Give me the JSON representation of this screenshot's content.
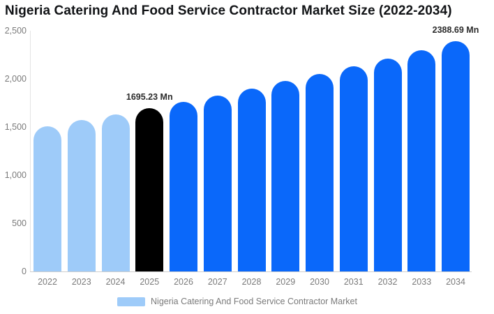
{
  "title": "Nigeria Catering And Food Service Contractor Market Size (2022-2034)",
  "legend": {
    "items": [
      {
        "label": "Nigeria Catering And Food Service Contractor Market",
        "swatch_color": "#9ECBF9"
      }
    ]
  },
  "y_axis": {
    "tick_labels": [
      "2,500",
      "2,000",
      "1,500",
      "1,000",
      "500",
      "0"
    ]
  },
  "chart_data": {
    "type": "bar",
    "title": "Nigeria Catering And Food Service Contractor Market Size (2022-2034)",
    "categories": [
      "2022",
      "2023",
      "2024",
      "2025",
      "2026",
      "2027",
      "2028",
      "2029",
      "2030",
      "2031",
      "2032",
      "2033",
      "2034"
    ],
    "series": [
      {
        "name": "Nigeria Catering And Food Service Contractor Market",
        "values": [
          1510,
          1570,
          1630,
          1695.23,
          1760,
          1830,
          1900,
          1975,
          2050,
          2130,
          2210,
          2300,
          2388.69
        ]
      }
    ],
    "unit": "Mn",
    "xlabel": "",
    "ylabel": "",
    "ylim": [
      0,
      2500
    ],
    "yticks": [
      0,
      500,
      1000,
      1500,
      2000,
      2500
    ],
    "grid": false,
    "legend_position": "bottom",
    "bar_roles": [
      "historical",
      "historical",
      "historical",
      "base_year",
      "forecast",
      "forecast",
      "forecast",
      "forecast",
      "forecast",
      "forecast",
      "forecast",
      "forecast",
      "forecast"
    ],
    "colors": {
      "historical": "#9ECBF9",
      "base_year": "#000000",
      "forecast": "#0A68FA"
    },
    "data_labels": [
      {
        "category": "2025",
        "text": "1695.23 Mn"
      },
      {
        "category": "2034",
        "text": "2388.69 Mn"
      }
    ]
  }
}
